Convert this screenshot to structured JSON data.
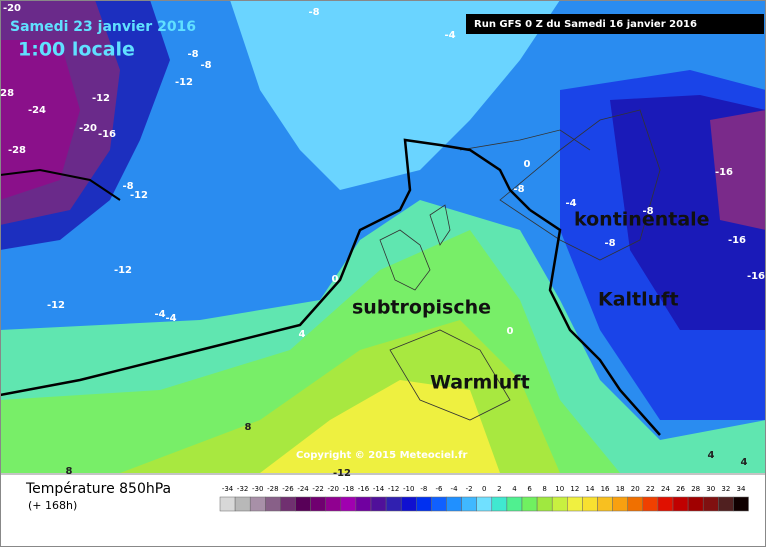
{
  "header": {
    "date": "Samedi 23 janvier 2016",
    "time": "1:00 locale",
    "run": "Run GFS 0 Z du Samedi 16 janvier 2016"
  },
  "annotations": [
    "kontinentale",
    "Kaltluft",
    "subtropische",
    "Warmluft"
  ],
  "copyright": "Copyright © 2015 Meteociel.fr",
  "contour_labels": [
    "-20",
    "-4",
    "-8",
    "-8",
    "-12",
    "-8",
    "-12",
    "-20",
    "-16",
    "-24",
    "-28",
    "-28",
    "-8",
    "-12",
    "-12",
    "-12",
    "-4",
    "-4",
    "0",
    "4",
    "0",
    "-8",
    "-4",
    "-8",
    "-8",
    "-16",
    "-16",
    "-16",
    "8",
    "8",
    "-12",
    "0",
    "4",
    "4"
  ],
  "legend": {
    "title": "Température 850hPa",
    "subtitle": "(+ 168h)",
    "ticks": [
      -34,
      -32,
      -30,
      -28,
      -26,
      -24,
      -22,
      -20,
      -18,
      -16,
      -14,
      -12,
      -10,
      -8,
      -6,
      -4,
      -2,
      0,
      2,
      4,
      6,
      8,
      10,
      12,
      14,
      16,
      18,
      20,
      22,
      24,
      26,
      28,
      30,
      32,
      34
    ],
    "colors": [
      "#d8d8d8",
      "#b8b8b8",
      "#a890a8",
      "#886088",
      "#703070",
      "#580058",
      "#700070",
      "#900090",
      "#a000b0",
      "#7000a0",
      "#50109a",
      "#3020b0",
      "#1010d0",
      "#0030f0",
      "#1060ff",
      "#2090ff",
      "#40b8ff",
      "#70e0ff",
      "#40e8d0",
      "#50f090",
      "#70f060",
      "#a0e840",
      "#c8f040",
      "#f0f040",
      "#f8e030",
      "#f8c020",
      "#f8a010",
      "#f07000",
      "#f04000",
      "#e01000",
      "#c00000",
      "#a00000",
      "#801010",
      "#502020",
      "#100000"
    ]
  }
}
